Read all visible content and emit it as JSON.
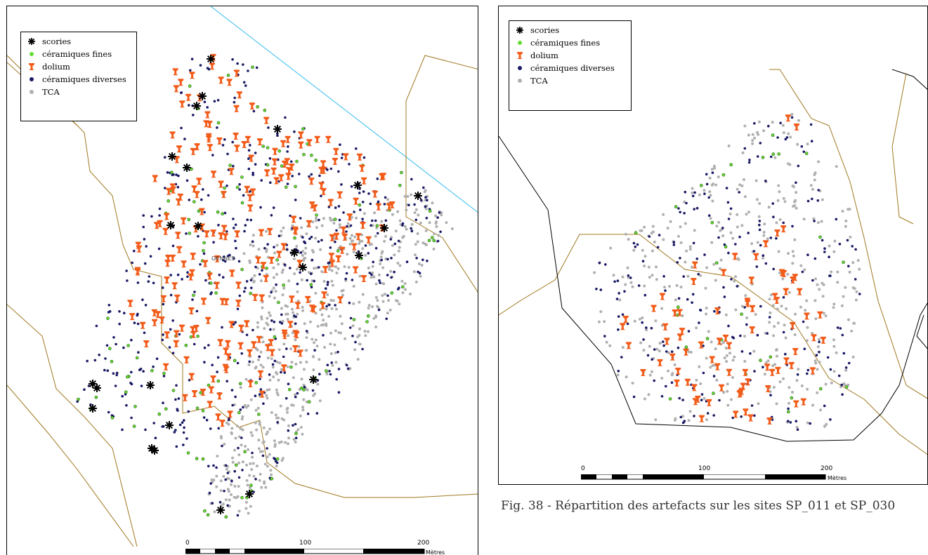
{
  "legend_items": {
    "scories": "scories",
    "ceramiques_fines": "céramiques fines",
    "dolium": "dolium",
    "ceramiques_diverses": "céramiques diverses",
    "tca": "TCA"
  },
  "colors": {
    "scories": "#000000",
    "ceramiques_fines": "#66dd33",
    "dolium": "#f25c1a",
    "ceramiques_diverses": "#1a1a66",
    "tca": "#b0b0b0",
    "parcel_line": "#a07820",
    "river_line": "#33bbee",
    "boundary_line": "#000000"
  },
  "left_map": {
    "place_label": "GENNES",
    "scale": {
      "ticks": [
        "0",
        "100",
        "200"
      ],
      "unit": "Mètres"
    }
  },
  "right_map": {
    "scale": {
      "ticks": [
        "0",
        "100",
        "200"
      ],
      "unit": "Mètres"
    }
  },
  "caption": "Fig. 38 - Répartition des artefacts sur les sites SP_011  et SP_030"
}
